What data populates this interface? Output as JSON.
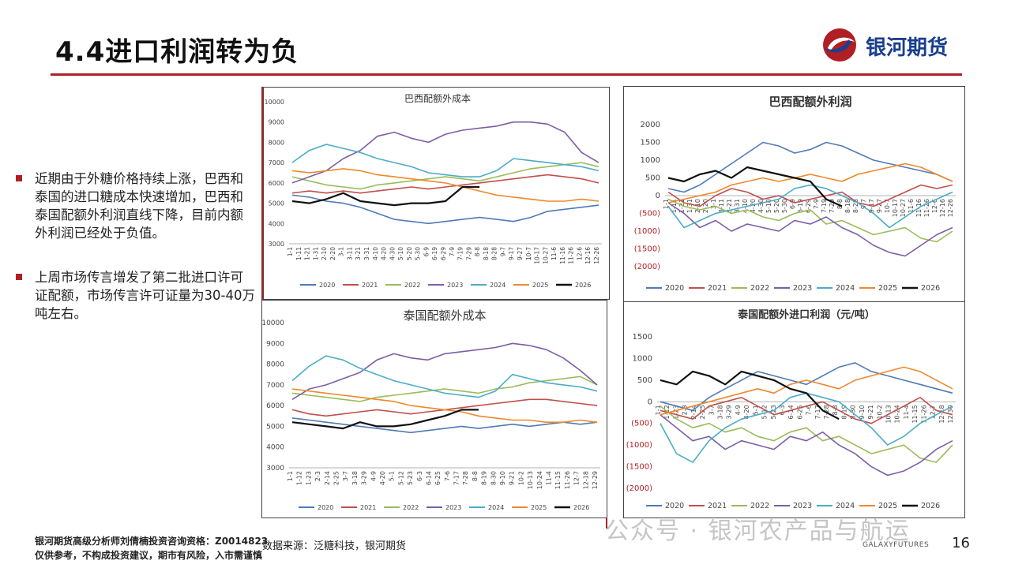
{
  "slide": {
    "title": "4.4进口利润转为负",
    "logo_text": "银河期货",
    "page_number": "16",
    "galaxy_mark": "GALAXYFUTURES",
    "watermark": "公众号 · 银河农产品与航运",
    "footer_line1": "银河期货高级分析师刘倩楠投资咨询资格：Z0014",
    "footer_line1b": "823",
    "footer_line2": "仅供参考，不构成投资建议，期市有风险，入市需谨慎",
    "source": "数据来源：泛糖科技，银河期货",
    "colors": {
      "accent_red": "#b01f24",
      "brand_blue": "#1a3f8f"
    }
  },
  "bullets": [
    {
      "text": "近期由于外糖价格持续上涨，巴西和泰国的进口糖成本快速增加，巴西和泰国配额外利润直线下降，目前内额外利润已经处于负值。"
    },
    {
      "text": "上周市场传言增发了第二批进口许可证配额，市场传言许可证量为30-40万吨左右。"
    }
  ],
  "series_colors": {
    "2020": "#4f7ab8",
    "2021": "#c0504d",
    "2022": "#9bbb59",
    "2023": "#7b5ea7",
    "2024": "#4bacc6",
    "2025": "#f0882a",
    "2026": "#111111"
  },
  "legend": [
    "2020",
    "2021",
    "2022",
    "2023",
    "2024",
    "2025",
    "2026"
  ],
  "chart_data": [
    {
      "type": "line",
      "title": "巴西配额外成本",
      "ylim": [
        3000,
        10000
      ],
      "yticks": [
        "10000",
        "9000",
        "8000",
        "7000",
        "6000",
        "5000",
        "4000",
        "3000"
      ],
      "xticks": [
        "1-1",
        "1-11",
        "1-21",
        "1-31",
        "2-10",
        "2-20",
        "3-1",
        "3-11",
        "3-21",
        "3-31",
        "4-10",
        "4-20",
        "4-30",
        "5-10",
        "5-20",
        "5-30",
        "6-9",
        "6-19",
        "6-29",
        "7-9",
        "7-19",
        "7-29",
        "8-8",
        "8-18",
        "8-28",
        "9-7",
        "9-17",
        "9-27",
        "10-7",
        "10-17",
        "10-27",
        "11-6",
        "11-16",
        "11-26",
        "12-6",
        "12-16",
        "12-26"
      ],
      "series": [
        {
          "name": "2020",
          "values": [
            5400,
            5300,
            5100,
            5000,
            4800,
            4500,
            4200,
            4100,
            4000,
            4100,
            4200,
            4300,
            4200,
            4100,
            4300,
            4600,
            4700,
            4800,
            4900
          ]
        },
        {
          "name": "2021",
          "values": [
            5500,
            5600,
            5500,
            5600,
            5500,
            5600,
            5700,
            5800,
            5700,
            5800,
            5900,
            6000,
            6100,
            6200,
            6300,
            6400,
            6300,
            6200,
            6000
          ]
        },
        {
          "name": "2022",
          "values": [
            6300,
            6100,
            5900,
            5800,
            5700,
            5900,
            6000,
            6100,
            6200,
            6300,
            6200,
            6100,
            6300,
            6500,
            6700,
            6800,
            6900,
            7000,
            6800
          ]
        },
        {
          "name": "2023",
          "values": [
            6000,
            6300,
            6600,
            7200,
            7600,
            8300,
            8500,
            8200,
            8000,
            8400,
            8600,
            8700,
            8800,
            9000,
            9000,
            8900,
            8500,
            7500,
            7000
          ]
        },
        {
          "name": "2024",
          "values": [
            7000,
            7600,
            7900,
            7700,
            7500,
            7200,
            7000,
            6800,
            6500,
            6400,
            6300,
            6300,
            6600,
            7200,
            7100,
            7000,
            6900,
            6800,
            6600
          ]
        },
        {
          "name": "2025",
          "values": [
            6600,
            6500,
            6600,
            6700,
            6600,
            6400,
            6300,
            6200,
            6100,
            6000,
            5800,
            5600,
            5400,
            5300,
            5200,
            5100,
            5100,
            5200,
            5100
          ]
        },
        {
          "name": "2026",
          "values": [
            5100,
            5000,
            5200,
            5500,
            5100,
            5000,
            4900,
            5000,
            5000,
            5100,
            5800,
            5800
          ]
        }
      ]
    },
    {
      "type": "line",
      "title": "巴西配额外利润",
      "ylim": [
        -2000,
        2000
      ],
      "yticks": [
        "2000",
        "1500",
        "1000",
        "500",
        "0",
        "(500)",
        "(1000)",
        "(1500)",
        "(2000)"
      ],
      "xticks": [
        "1-1",
        "1-11",
        "1-21",
        "1-31",
        "2-10",
        "2-20",
        "3-1",
        "3-11",
        "3-21",
        "3-31",
        "4-10",
        "4-20",
        "4-30",
        "5-10",
        "5-20",
        "5-30",
        "6-9",
        "6-19",
        "6-29",
        "7-9",
        "7-19",
        "7-29",
        "8-8",
        "8-18",
        "8-28",
        "9-7",
        "9-17",
        "9-27",
        "10-7",
        "10-17",
        "10-27",
        "11-6",
        "11-16",
        "11-26",
        "12-6",
        "12-16",
        "12-26"
      ],
      "series": [
        {
          "name": "2020",
          "values": [
            200,
            100,
            300,
            600,
            900,
            1200,
            1500,
            1400,
            1200,
            1300,
            1500,
            1400,
            1200,
            1000,
            900,
            800,
            700,
            600,
            400
          ]
        },
        {
          "name": "2021",
          "values": [
            100,
            -200,
            -300,
            0,
            200,
            100,
            -100,
            0,
            -200,
            -100,
            0,
            100,
            -200,
            -300,
            -100,
            100,
            300,
            200,
            300
          ]
        },
        {
          "name": "2022",
          "values": [
            -100,
            -300,
            -400,
            -300,
            -500,
            -400,
            -600,
            -700,
            -500,
            -400,
            -800,
            -700,
            -900,
            -1100,
            -1000,
            -900,
            -1200,
            -1300,
            -1000
          ]
        },
        {
          "name": "2023",
          "values": [
            -200,
            -500,
            -900,
            -700,
            -1000,
            -800,
            -900,
            -1000,
            -700,
            -800,
            -600,
            -900,
            -1100,
            -1400,
            -1600,
            -1700,
            -1400,
            -1100,
            -900
          ]
        },
        {
          "name": "2024",
          "values": [
            -300,
            -900,
            -700,
            -500,
            -400,
            -300,
            -200,
            -100,
            200,
            300,
            200,
            0,
            -200,
            -500,
            -900,
            -600,
            -300,
            -100,
            100
          ]
        },
        {
          "name": "2025",
          "values": [
            -200,
            -100,
            0,
            100,
            300,
            400,
            500,
            400,
            500,
            600,
            500,
            400,
            600,
            700,
            800,
            900,
            800,
            600,
            400
          ]
        },
        {
          "name": "2026",
          "values": [
            500,
            400,
            600,
            700,
            500,
            800,
            700,
            600,
            500,
            400,
            -100,
            -300
          ]
        }
      ]
    },
    {
      "type": "line",
      "title": "泰国配额外成本",
      "ylim": [
        3000,
        10000
      ],
      "yticks": [
        "10000",
        "9000",
        "8000",
        "7000",
        "6000",
        "5000",
        "4000",
        "3000"
      ],
      "xticks": [
        "1-1",
        "1-12",
        "1-23",
        "2-3",
        "2-14",
        "2-25",
        "3-7",
        "3-18",
        "3-29",
        "4-9",
        "4-20",
        "5-1",
        "5-12",
        "5-23",
        "6-3",
        "6-14",
        "6-25",
        "7-6",
        "7-17",
        "7-28",
        "8-8",
        "8-19",
        "8-30",
        "9-10",
        "9-21",
        "10-2",
        "10-13",
        "10-24",
        "11-4",
        "11-15",
        "11-26",
        "12-7",
        "12-18",
        "12-29"
      ],
      "series": [
        {
          "name": "2020",
          "values": [
            5400,
            5300,
            5200,
            5100,
            5000,
            4900,
            4800,
            4700,
            4800,
            4900,
            5000,
            4900,
            5000,
            5100,
            5000,
            5100,
            5200,
            5100,
            5200
          ]
        },
        {
          "name": "2021",
          "values": [
            5800,
            5600,
            5500,
            5600,
            5700,
            5800,
            5700,
            5600,
            5700,
            5800,
            5900,
            6000,
            6100,
            6200,
            6300,
            6300,
            6200,
            6100,
            6000
          ]
        },
        {
          "name": "2022",
          "values": [
            6600,
            6500,
            6400,
            6300,
            6200,
            6400,
            6500,
            6600,
            6700,
            6800,
            6700,
            6600,
            6800,
            6900,
            7100,
            7200,
            7300,
            7400,
            7000
          ]
        },
        {
          "name": "2023",
          "values": [
            6300,
            6800,
            7000,
            7300,
            7600,
            8200,
            8500,
            8300,
            8200,
            8500,
            8600,
            8700,
            8800,
            9000,
            8900,
            8700,
            8300,
            7700,
            7000
          ]
        },
        {
          "name": "2024",
          "values": [
            7200,
            7900,
            8400,
            8200,
            7800,
            7500,
            7200,
            7000,
            6800,
            6600,
            6500,
            6400,
            6700,
            7500,
            7300,
            7100,
            7000,
            6900,
            6700
          ]
        },
        {
          "name": "2025",
          "values": [
            6800,
            6700,
            6600,
            6500,
            6400,
            6300,
            6200,
            6000,
            5900,
            5800,
            5700,
            5500,
            5400,
            5300,
            5300,
            5200,
            5200,
            5300,
            5200
          ]
        },
        {
          "name": "2026",
          "values": [
            5200,
            5100,
            5000,
            4900,
            5200,
            5000,
            5000,
            5100,
            5300,
            5500,
            5800,
            5800
          ]
        }
      ]
    },
    {
      "type": "line",
      "title": "泰国配额外进口利润（元/吨）",
      "ylim": [
        -2000,
        1500
      ],
      "yticks": [
        "1500",
        "1000",
        "500",
        "0",
        "(500)",
        "(1000)",
        "(1500)",
        "(2000)"
      ],
      "xticks": [
        "1-1",
        "1-12",
        "1-23",
        "2-3",
        "2-14",
        "2-25",
        "3-7",
        "3-18",
        "3-29",
        "4-9",
        "4-20",
        "5-1",
        "5-12",
        "5-23",
        "6-3",
        "6-14",
        "6-25",
        "7-6",
        "7-17",
        "7-28",
        "8-8",
        "8-19",
        "8-30",
        "9-10",
        "9-21",
        "10-2",
        "10-13",
        "10-24",
        "11-4",
        "11-15",
        "11-26",
        "12-7",
        "12-18",
        "12-30"
      ],
      "series": [
        {
          "name": "2020",
          "values": [
            0,
            -100,
            -200,
            100,
            300,
            500,
            700,
            600,
            500,
            400,
            600,
            800,
            900,
            700,
            600,
            500,
            400,
            300,
            200
          ]
        },
        {
          "name": "2021",
          "values": [
            -200,
            -300,
            -400,
            -100,
            0,
            100,
            -100,
            -300,
            -200,
            -100,
            0,
            -200,
            -400,
            -500,
            -300,
            -100,
            100,
            -200,
            -300
          ]
        },
        {
          "name": "2022",
          "values": [
            -100,
            -400,
            -600,
            -500,
            -700,
            -600,
            -800,
            -900,
            -700,
            -600,
            -900,
            -800,
            -1000,
            -1200,
            -1100,
            -1000,
            -1300,
            -1400,
            -1000
          ]
        },
        {
          "name": "2023",
          "values": [
            -300,
            -600,
            -900,
            -800,
            -1100,
            -900,
            -1000,
            -1100,
            -800,
            -900,
            -700,
            -1000,
            -1200,
            -1500,
            -1700,
            -1600,
            -1400,
            -1100,
            -900
          ]
        },
        {
          "name": "2024",
          "values": [
            -500,
            -1200,
            -1400,
            -900,
            -600,
            -400,
            -300,
            -200,
            100,
            200,
            100,
            0,
            -300,
            -600,
            -1000,
            -800,
            -500,
            -300,
            -100
          ]
        },
        {
          "name": "2025",
          "values": [
            -300,
            -200,
            -100,
            0,
            100,
            200,
            300,
            200,
            400,
            500,
            400,
            300,
            500,
            600,
            700,
            800,
            700,
            500,
            300
          ]
        },
        {
          "name": "2026",
          "values": [
            500,
            400,
            700,
            600,
            400,
            700,
            600,
            500,
            300,
            200,
            -200,
            -400
          ]
        }
      ]
    }
  ]
}
